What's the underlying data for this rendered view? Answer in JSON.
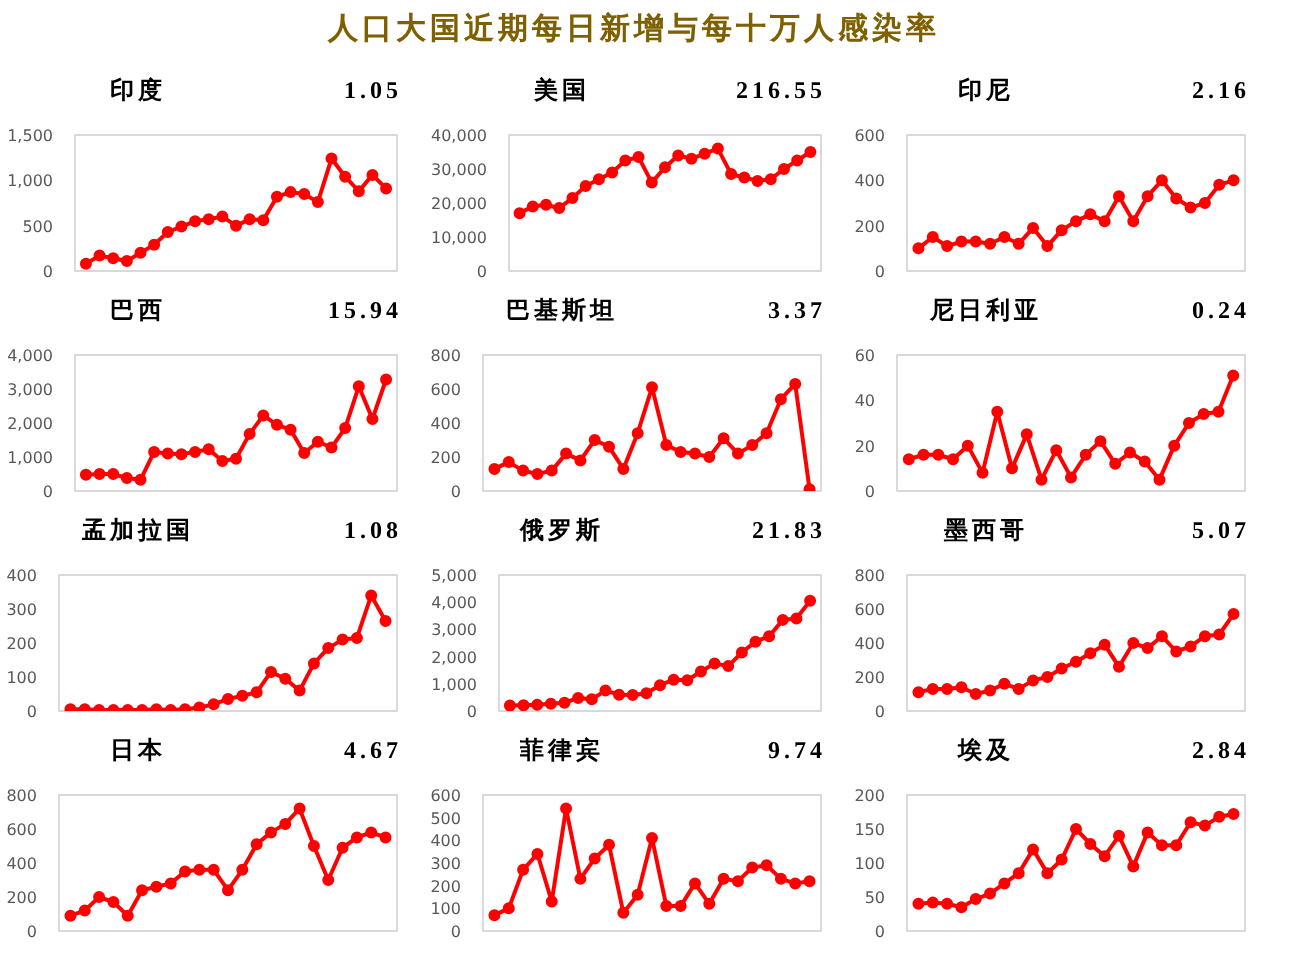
{
  "chart_data": [
    {
      "type": "other",
      "title": "人口大国近期每日新增与每十万人感染率",
      "color": "#7f6000"
    },
    {
      "type": "line",
      "title": "印度",
      "subtitle": "1.05",
      "tick_labels": "y",
      "marker": "circle",
      "categories": [
        null,
        null,
        null,
        null,
        null,
        null,
        null,
        null,
        null,
        null,
        null,
        null,
        null,
        null,
        null,
        null,
        null,
        null,
        null,
        null,
        null,
        null,
        null
      ],
      "ylim": [
        0,
        1500
      ],
      "yticks": [
        0,
        500,
        {
          "value": 1000,
          "label": "1,000"
        },
        {
          "value": 1500,
          "label": "1,500"
        }
      ],
      "series": [
        {
          "color": "#ff0000",
          "values": [
            80,
            170,
            140,
            110,
            200,
            290,
            430,
            490,
            550,
            570,
            600,
            500,
            570,
            560,
            820,
            870,
            850,
            760,
            1240,
            1040,
            880,
            1060,
            910
          ]
        }
      ]
    },
    {
      "type": "line",
      "title": "美国",
      "subtitle": "216.55",
      "tick_labels": "y",
      "marker": "circle",
      "categories": [
        null,
        null,
        null,
        null,
        null,
        null,
        null,
        null,
        null,
        null,
        null,
        null,
        null,
        null,
        null,
        null,
        null,
        null,
        null,
        null,
        null,
        null,
        null
      ],
      "ylim": [
        0,
        40000
      ],
      "yticks": [
        0,
        {
          "value": 10000,
          "label": "10,000"
        },
        {
          "value": 20000,
          "label": "20,000"
        },
        {
          "value": 30000,
          "label": "30,000"
        },
        {
          "value": 40000,
          "label": "40,000"
        }
      ],
      "series": [
        {
          "color": "#ff0000",
          "values": [
            17000,
            19000,
            19500,
            18500,
            21500,
            25000,
            27000,
            29000,
            32500,
            33500,
            26000,
            30500,
            34000,
            33000,
            34500,
            36000,
            28500,
            27500,
            26500,
            27000,
            30000,
            32500,
            35000
          ]
        }
      ]
    },
    {
      "type": "line",
      "title": "印尼",
      "subtitle": "2.16",
      "tick_labels": "y",
      "marker": "circle",
      "categories": [
        null,
        null,
        null,
        null,
        null,
        null,
        null,
        null,
        null,
        null,
        null,
        null,
        null,
        null,
        null,
        null,
        null,
        null,
        null,
        null,
        null,
        null,
        null
      ],
      "ylim": [
        0,
        600
      ],
      "yticks": [
        0,
        200,
        400,
        600
      ],
      "series": [
        {
          "color": "#ff0000",
          "values": [
            100,
            150,
            110,
            130,
            130,
            120,
            150,
            120,
            190,
            110,
            180,
            220,
            250,
            220,
            330,
            220,
            330,
            400,
            320,
            280,
            300,
            380,
            400
          ]
        }
      ]
    },
    {
      "type": "line",
      "title": "巴西",
      "subtitle": "15.94",
      "tick_labels": "y",
      "marker": "circle",
      "categories": [
        null,
        null,
        null,
        null,
        null,
        null,
        null,
        null,
        null,
        null,
        null,
        null,
        null,
        null,
        null,
        null,
        null,
        null,
        null,
        null,
        null,
        null,
        null
      ],
      "ylim": [
        0,
        4000
      ],
      "yticks": [
        0,
        {
          "value": 1000,
          "label": "1,000"
        },
        {
          "value": 2000,
          "label": "2,000"
        },
        {
          "value": 3000,
          "label": "3,000"
        },
        {
          "value": 4000,
          "label": "4,000"
        }
      ],
      "series": [
        {
          "color": "#ff0000",
          "values": [
            480,
            500,
            500,
            380,
            330,
            1150,
            1100,
            1080,
            1150,
            1230,
            880,
            950,
            1680,
            2220,
            1950,
            1800,
            1120,
            1450,
            1280,
            1850,
            3080,
            2120,
            3280
          ]
        }
      ]
    },
    {
      "type": "line",
      "title": "巴基斯坦",
      "subtitle": "3.37",
      "tick_labels": "y",
      "marker": "circle",
      "categories": [
        null,
        null,
        null,
        null,
        null,
        null,
        null,
        null,
        null,
        null,
        null,
        null,
        null,
        null,
        null,
        null,
        null,
        null,
        null,
        null,
        null,
        null,
        null
      ],
      "ylim": [
        0,
        800
      ],
      "yticks": [
        0,
        200,
        400,
        600,
        800
      ],
      "series": [
        {
          "color": "#ff0000",
          "values": [
            130,
            170,
            120,
            100,
            120,
            220,
            180,
            300,
            260,
            130,
            340,
            610,
            270,
            230,
            220,
            200,
            310,
            220,
            270,
            340,
            540,
            630,
            10
          ]
        }
      ]
    },
    {
      "type": "line",
      "title": "尼日利亚",
      "subtitle": "0.24",
      "tick_labels": "y",
      "marker": "circle",
      "categories": [
        null,
        null,
        null,
        null,
        null,
        null,
        null,
        null,
        null,
        null,
        null,
        null,
        null,
        null,
        null,
        null,
        null,
        null,
        null,
        null,
        null,
        null,
        null
      ],
      "ylim": [
        0,
        60
      ],
      "yticks": [
        0,
        20,
        40,
        60
      ],
      "series": [
        {
          "color": "#ff0000",
          "values": [
            14,
            16,
            16,
            14,
            20,
            8,
            35,
            10,
            25,
            5,
            18,
            6,
            16,
            22,
            12,
            17,
            13,
            5,
            20,
            30,
            34,
            35,
            51
          ]
        }
      ]
    },
    {
      "type": "line",
      "title": "孟加拉国",
      "subtitle": "1.08",
      "tick_labels": "y",
      "marker": "circle",
      "categories": [
        null,
        null,
        null,
        null,
        null,
        null,
        null,
        null,
        null,
        null,
        null,
        null,
        null,
        null,
        null,
        null,
        null,
        null,
        null,
        null,
        null,
        null,
        null
      ],
      "ylim": [
        0,
        400
      ],
      "yticks": [
        0,
        100,
        200,
        300,
        400
      ],
      "series": [
        {
          "color": "#ff0000",
          "values": [
            5,
            5,
            3,
            3,
            3,
            3,
            5,
            3,
            5,
            10,
            20,
            35,
            45,
            55,
            115,
            95,
            60,
            140,
            185,
            210,
            215,
            340,
            265
          ]
        }
      ]
    },
    {
      "type": "line",
      "title": "俄罗斯",
      "subtitle": "21.83",
      "tick_labels": "y",
      "marker": "circle",
      "categories": [
        null,
        null,
        null,
        null,
        null,
        null,
        null,
        null,
        null,
        null,
        null,
        null,
        null,
        null,
        null,
        null,
        null,
        null,
        null,
        null,
        null,
        null,
        null
      ],
      "ylim": [
        0,
        5000
      ],
      "yticks": [
        0,
        {
          "value": 1000,
          "label": "1,000"
        },
        {
          "value": 2000,
          "label": "2,000"
        },
        {
          "value": 3000,
          "label": "3,000"
        },
        {
          "value": 4000,
          "label": "4,000"
        },
        {
          "value": 5000,
          "label": "5,000"
        }
      ],
      "series": [
        {
          "color": "#ff0000",
          "values": [
            200,
            210,
            230,
            270,
            300,
            480,
            430,
            750,
            600,
            590,
            650,
            950,
            1150,
            1130,
            1450,
            1750,
            1650,
            2150,
            2550,
            2750,
            3350,
            3400,
            4050
          ]
        }
      ]
    },
    {
      "type": "line",
      "title": "墨西哥",
      "subtitle": "5.07",
      "tick_labels": "y",
      "marker": "circle",
      "categories": [
        null,
        null,
        null,
        null,
        null,
        null,
        null,
        null,
        null,
        null,
        null,
        null,
        null,
        null,
        null,
        null,
        null,
        null,
        null,
        null,
        null,
        null,
        null
      ],
      "ylim": [
        0,
        800
      ],
      "yticks": [
        0,
        200,
        400,
        600,
        800
      ],
      "series": [
        {
          "color": "#ff0000",
          "values": [
            110,
            130,
            130,
            140,
            100,
            120,
            160,
            130,
            180,
            200,
            250,
            290,
            340,
            390,
            260,
            400,
            370,
            440,
            350,
            380,
            440,
            450,
            570
          ]
        }
      ]
    },
    {
      "type": "line",
      "title": "日本",
      "subtitle": "4.67",
      "tick_labels": "y",
      "marker": "circle",
      "categories": [
        null,
        null,
        null,
        null,
        null,
        null,
        null,
        null,
        null,
        null,
        null,
        null,
        null,
        null,
        null,
        null,
        null,
        null,
        null,
        null,
        null,
        null,
        null
      ],
      "ylim": [
        0,
        800
      ],
      "yticks": [
        0,
        200,
        400,
        600,
        800
      ],
      "series": [
        {
          "color": "#ff0000",
          "values": [
            90,
            120,
            200,
            170,
            90,
            240,
            260,
            280,
            350,
            360,
            360,
            240,
            360,
            510,
            580,
            630,
            720,
            500,
            300,
            490,
            550,
            580,
            550
          ]
        }
      ]
    },
    {
      "type": "line",
      "title": "菲律宾",
      "subtitle": "9.74",
      "tick_labels": "y",
      "marker": "circle",
      "categories": [
        null,
        null,
        null,
        null,
        null,
        null,
        null,
        null,
        null,
        null,
        null,
        null,
        null,
        null,
        null,
        null,
        null,
        null,
        null,
        null,
        null,
        null,
        null
      ],
      "ylim": [
        0,
        600
      ],
      "yticks": [
        0,
        100,
        200,
        300,
        400,
        500,
        600
      ],
      "series": [
        {
          "color": "#ff0000",
          "values": [
            70,
            100,
            270,
            340,
            130,
            540,
            230,
            320,
            380,
            80,
            160,
            410,
            110,
            110,
            210,
            120,
            230,
            220,
            280,
            290,
            230,
            210,
            220
          ]
        }
      ]
    },
    {
      "type": "line",
      "title": "埃及",
      "subtitle": "2.84",
      "tick_labels": "y",
      "marker": "circle",
      "categories": [
        null,
        null,
        null,
        null,
        null,
        null,
        null,
        null,
        null,
        null,
        null,
        null,
        null,
        null,
        null,
        null,
        null,
        null,
        null,
        null,
        null,
        null,
        null
      ],
      "ylim": [
        0,
        200
      ],
      "yticks": [
        0,
        50,
        100,
        150,
        200
      ],
      "series": [
        {
          "color": "#ff0000",
          "values": [
            40,
            42,
            40,
            35,
            47,
            55,
            70,
            85,
            120,
            85,
            105,
            150,
            128,
            110,
            140,
            95,
            145,
            126,
            126,
            160,
            155,
            168,
            172
          ]
        }
      ]
    }
  ]
}
